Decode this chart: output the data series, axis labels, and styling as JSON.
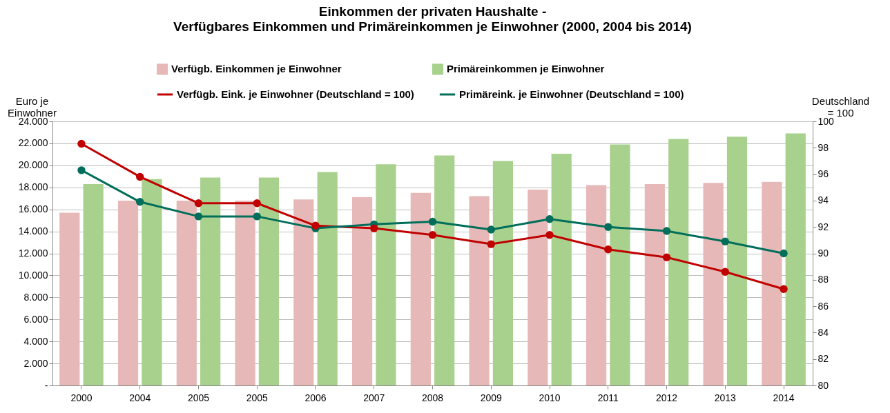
{
  "chart_data": {
    "type": "bar",
    "title": "Einkommen der privaten Haushalte -",
    "subtitle": "Verfügbares Einkommen und Primäreinkommen je Einwohner (2000, 2004 bis 2014)",
    "ylabel": "Euro je\nEinwohner",
    "y2label": "Deutschland\n= 100",
    "categories": [
      "2000",
      "2004",
      "2005",
      "2005",
      "2006",
      "2007",
      "2008",
      "2009",
      "2010",
      "2011",
      "2012",
      "2013",
      "2014"
    ],
    "series": [
      {
        "name": "Verfügb. Einkommen je Einwohner",
        "color": "#e6b9b8",
        "values": [
          15700,
          16800,
          16800,
          16800,
          16900,
          17100,
          17500,
          17200,
          17800,
          18200,
          18300,
          18400,
          18500
        ]
      },
      {
        "name": "Primäreinkommen je Einwohner",
        "color": "#a9d18e",
        "values": [
          18300,
          18750,
          18900,
          18900,
          19400,
          20100,
          20900,
          20400,
          21050,
          21900,
          22400,
          22600,
          22900
        ]
      },
      {
        "name": "Verfügb. Eink. je Einwohner (Deutschland = 100)",
        "type": "line",
        "axis": "y2",
        "color": "#c00000",
        "values": [
          98.3,
          95.8,
          93.8,
          93.8,
          92.1,
          91.9,
          91.4,
          90.7,
          91.4,
          90.3,
          89.7,
          88.6,
          87.3
        ]
      },
      {
        "name": "Primäreink. je Einwohner (Deutschland = 100)",
        "type": "line",
        "axis": "y2",
        "color": "#006e5a",
        "values": [
          96.3,
          93.9,
          92.8,
          92.8,
          91.9,
          92.2,
          92.4,
          91.8,
          92.6,
          92.0,
          91.7,
          90.9,
          90.0
        ]
      }
    ],
    "ylim": [
      0,
      24000
    ],
    "yticks": [
      {
        "value": 0,
        "label": "-"
      },
      {
        "value": 2000,
        "label": "2.000"
      },
      {
        "value": 4000,
        "label": "4.000"
      },
      {
        "value": 6000,
        "label": "6.000"
      },
      {
        "value": 8000,
        "label": "8.000"
      },
      {
        "value": 10000,
        "label": "10.000"
      },
      {
        "value": 12000,
        "label": "12.000"
      },
      {
        "value": 14000,
        "label": "14.000"
      },
      {
        "value": 16000,
        "label": "16.000"
      },
      {
        "value": 18000,
        "label": "18.000"
      },
      {
        "value": 20000,
        "label": "20.000"
      },
      {
        "value": 22000,
        "label": "22.000"
      },
      {
        "value": 24000,
        "label": "24.000"
      }
    ],
    "y2lim": [
      80,
      100
    ],
    "y2ticks": [
      80,
      82,
      84,
      86,
      88,
      90,
      92,
      94,
      96,
      98,
      100
    ],
    "grid": "y",
    "legend": "top",
    "marker": "circle",
    "line_style": "solid"
  }
}
